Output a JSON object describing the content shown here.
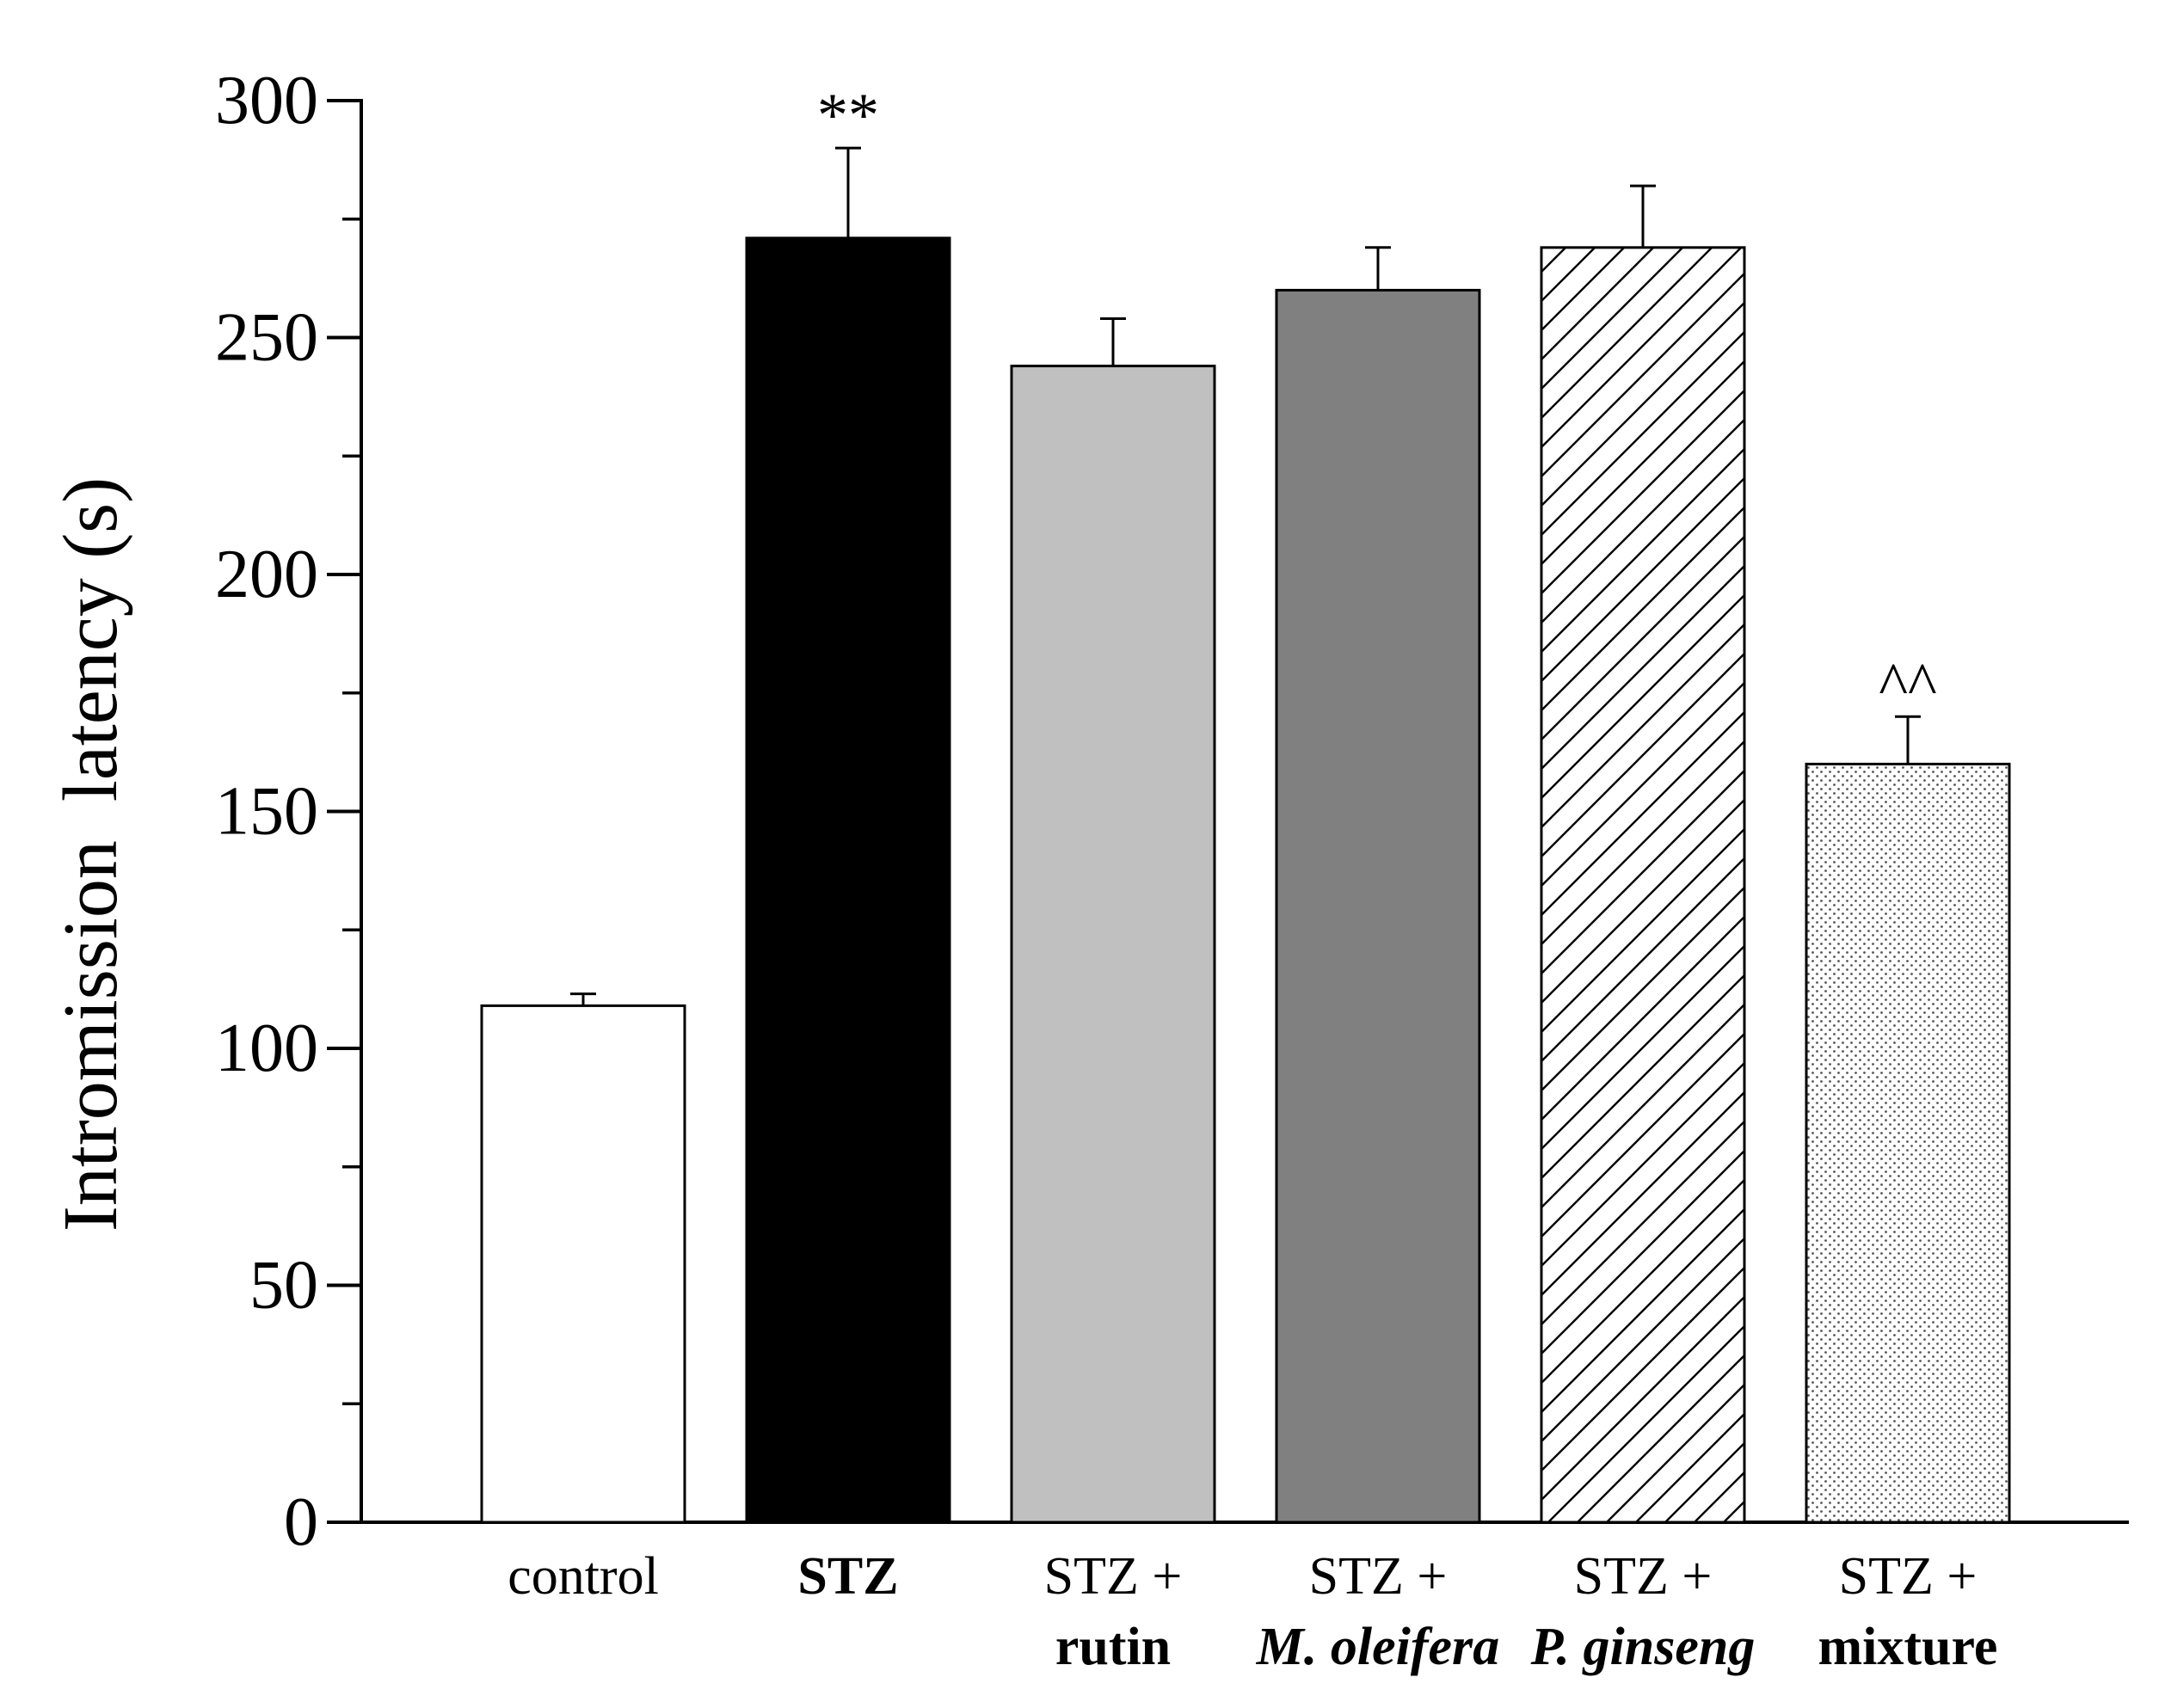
{
  "chart_data": {
    "type": "bar",
    "title": "",
    "xlabel": "",
    "ylabel": "Intromission  latency (s)",
    "ylim": [
      0,
      300
    ],
    "y_major_ticks": [
      0,
      50,
      100,
      150,
      200,
      250,
      300
    ],
    "y_minor_step": 25,
    "grid": false,
    "categories": [
      {
        "line1": "control",
        "line1_style": "normal",
        "line2": "",
        "line2_style": "normal"
      },
      {
        "line1": "STZ",
        "line1_style": "bold",
        "line2": "",
        "line2_style": "normal"
      },
      {
        "line1": "STZ +",
        "line1_style": "normal",
        "line2": "rutin",
        "line2_style": "bold"
      },
      {
        "line1": "STZ +",
        "line1_style": "normal",
        "line2": "M. oleifera",
        "line2_style": "bold-italic"
      },
      {
        "line1": "STZ +",
        "line1_style": "normal",
        "line2": "P. ginseng",
        "line2_style": "bold-italic"
      },
      {
        "line1": "STZ +",
        "line1_style": "normal",
        "line2": "mixture",
        "line2_style": "bold"
      }
    ],
    "values": [
      109,
      271,
      244,
      260,
      269,
      160
    ],
    "errors": [
      2.5,
      19,
      10,
      9,
      13,
      10
    ],
    "annotations": [
      "",
      "**",
      "",
      "",
      "",
      "^^"
    ],
    "fills": [
      {
        "kind": "solid",
        "color": "#ffffff"
      },
      {
        "kind": "solid",
        "color": "#000000"
      },
      {
        "kind": "solid",
        "color": "#c0c0c0"
      },
      {
        "kind": "solid",
        "color": "#808080"
      },
      {
        "kind": "hatch",
        "color": "#ffffff"
      },
      {
        "kind": "dots",
        "color": "#ffffff"
      }
    ]
  }
}
